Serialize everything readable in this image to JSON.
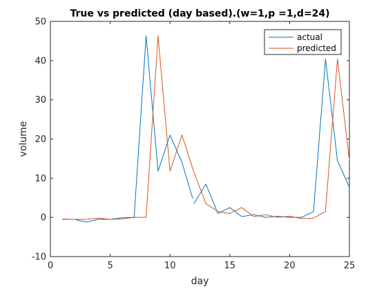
{
  "chart_data": {
    "type": "line",
    "title": "True vs predicted (day based).(w=1,p =1,d=24)",
    "xlabel": "day",
    "ylabel": "volume",
    "xlim": [
      0,
      25
    ],
    "ylim": [
      -10,
      50
    ],
    "xticks": [
      0,
      5,
      10,
      15,
      20,
      25
    ],
    "yticks": [
      -10,
      0,
      10,
      20,
      30,
      40,
      50
    ],
    "grid": false,
    "legend_location": "top-right",
    "series": [
      {
        "name": "actual",
        "color": "#0072BD",
        "points": [
          [
            1,
            -0.5
          ],
          [
            2,
            -0.5
          ],
          [
            3,
            -1.2
          ],
          [
            4,
            -0.5
          ],
          [
            5,
            -0.5
          ],
          [
            6,
            -0.1
          ],
          [
            7,
            0.0
          ],
          [
            8,
            46.3
          ],
          [
            9,
            11.8
          ],
          [
            10,
            21.0
          ],
          [
            11,
            14.0
          ],
          [
            11.9,
            4.8
          ],
          null,
          [
            12,
            3.5
          ],
          [
            13,
            8.5
          ],
          [
            14,
            1.0
          ],
          [
            15,
            2.5
          ],
          [
            16,
            0.2
          ],
          [
            17,
            0.7
          ],
          [
            18,
            0.0
          ],
          [
            19,
            0.3
          ],
          [
            20,
            0.0
          ],
          [
            21,
            0.0
          ],
          [
            22,
            1.5
          ],
          [
            23,
            40.4
          ],
          [
            24,
            14.5
          ],
          [
            25,
            7.7
          ]
        ]
      },
      {
        "name": "predicted",
        "color": "#D95319",
        "points": [
          [
            1,
            -0.4
          ],
          [
            2,
            -0.5
          ],
          [
            3,
            -0.5
          ],
          [
            4,
            -0.2
          ],
          [
            5,
            -0.5
          ],
          [
            6,
            -0.4
          ],
          [
            7,
            0.0
          ],
          [
            8,
            0.0
          ],
          [
            9,
            46.3
          ],
          [
            10,
            11.8
          ],
          [
            11,
            21.0
          ],
          [
            12,
            11.5
          ],
          [
            13,
            3.5
          ],
          [
            14,
            1.5
          ],
          [
            15,
            1.0
          ],
          [
            16,
            2.5
          ],
          [
            17,
            0.2
          ],
          [
            18,
            0.7
          ],
          [
            19,
            0.0
          ],
          [
            20,
            0.3
          ],
          [
            21,
            -0.3
          ],
          [
            22,
            -0.2
          ],
          [
            23,
            1.5
          ],
          [
            24,
            40.4
          ],
          [
            25,
            14.5
          ]
        ]
      }
    ]
  }
}
